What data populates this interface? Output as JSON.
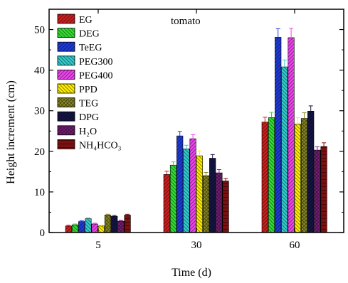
{
  "chart_data": {
    "type": "bar",
    "title": "",
    "annotation": "tomato",
    "xlabel": "Time (d)",
    "ylabel": "Height increment (cm)",
    "ylim": [
      0,
      55
    ],
    "yticks": [
      0,
      10,
      20,
      30,
      40,
      50
    ],
    "categories": [
      "5",
      "30",
      "60"
    ],
    "legend_position": "top-left",
    "series": [
      {
        "name": "EG",
        "color": "#cc1f1f",
        "pattern": "diag-right",
        "values": [
          1.6,
          14.3,
          27.2
        ],
        "errors": [
          0.2,
          0.8,
          1.2
        ]
      },
      {
        "name": "DEG",
        "color": "#33dd33",
        "pattern": "diag-left",
        "values": [
          1.9,
          16.6,
          28.3
        ],
        "errors": [
          0.2,
          0.8,
          1.3
        ]
      },
      {
        "name": "TeEG",
        "color": "#1f3bd9",
        "pattern": "diag-right",
        "values": [
          2.7,
          23.8,
          48.1
        ],
        "errors": [
          0.2,
          1.1,
          2.1
        ]
      },
      {
        "name": "PEG300",
        "color": "#33cccc",
        "pattern": "diag-left",
        "values": [
          3.4,
          20.6,
          40.8
        ],
        "errors": [
          0.2,
          0.9,
          1.7
        ]
      },
      {
        "name": "PEG400",
        "color": "#ee44ee",
        "pattern": "diag-right",
        "values": [
          2.1,
          23.1,
          48.0
        ],
        "errors": [
          0.2,
          1.0,
          2.3
        ]
      },
      {
        "name": "PPD",
        "color": "#ffee00",
        "pattern": "diag-left",
        "values": [
          1.6,
          18.9,
          26.7
        ],
        "errors": [
          0.2,
          1.2,
          1.6
        ]
      },
      {
        "name": "TEG",
        "color": "#8a8a26",
        "pattern": "cross",
        "values": [
          4.3,
          14.0,
          28.1
        ],
        "errors": [
          0.2,
          0.8,
          1.4
        ]
      },
      {
        "name": "DPG",
        "color": "#151545",
        "pattern": "diag-right",
        "values": [
          4.0,
          18.3,
          29.9
        ],
        "errors": [
          0.2,
          0.9,
          1.3
        ]
      },
      {
        "name": "H₂O",
        "color": "#7a1f7a",
        "pattern": "cross",
        "values": [
          2.8,
          14.7,
          20.3
        ],
        "errors": [
          0.2,
          0.8,
          0.8
        ]
      },
      {
        "name": "NH₄HCO₃",
        "color": "#7a1010",
        "pattern": "horiz",
        "values": [
          4.3,
          12.7,
          21.2
        ],
        "errors": [
          0.2,
          0.6,
          0.9
        ]
      }
    ]
  }
}
